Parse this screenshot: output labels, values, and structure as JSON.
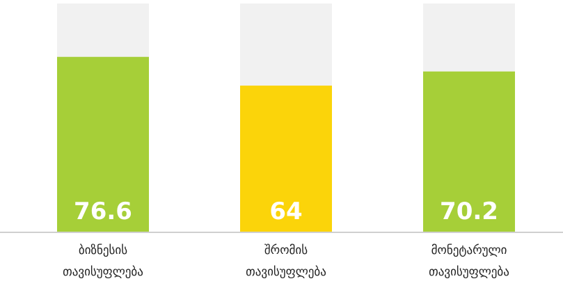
{
  "chart_data": {
    "type": "bar",
    "categories": [
      {
        "line1": "ბიზნესის",
        "line2": "თავისუფლება"
      },
      {
        "line1": "შრომის",
        "line2": "თავისუფლება"
      },
      {
        "line1": "მონეტარული",
        "line2": "თავისუფლება"
      }
    ],
    "values": [
      76.6,
      64,
      70.2
    ],
    "value_labels": [
      "76.6",
      "64",
      "70.2"
    ],
    "ylim": [
      0,
      100
    ],
    "colors": {
      "bars": [
        "#a6cf38",
        "#fbd40a",
        "#a6cf38"
      ],
      "track": "#f1f1f1",
      "baseline": "#cfcfcf",
      "value_text": "#ffffff"
    },
    "grid": false,
    "legend": "none"
  }
}
